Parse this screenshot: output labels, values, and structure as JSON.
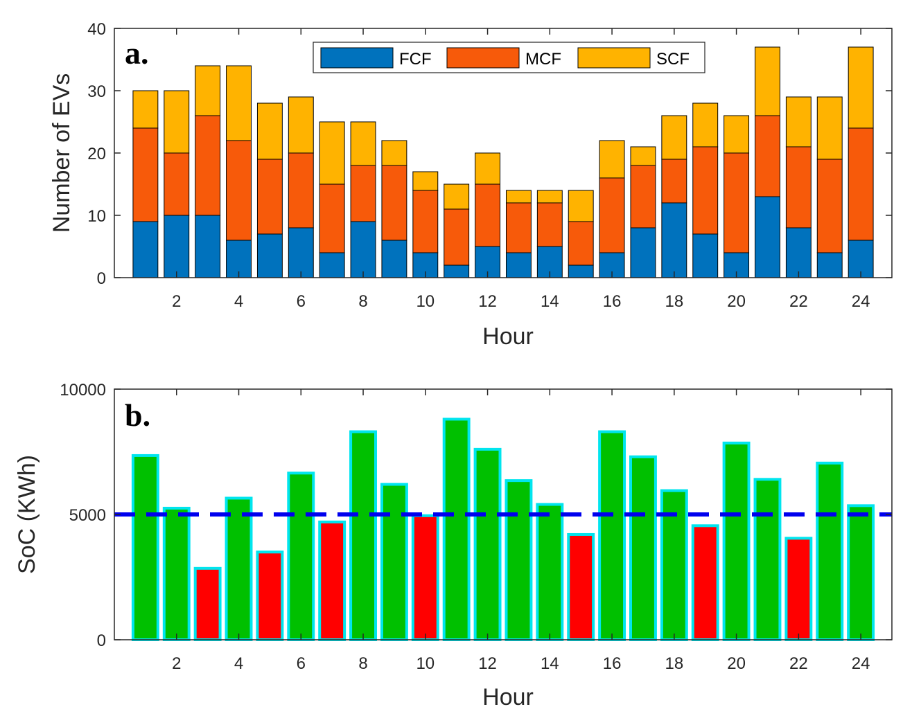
{
  "chart_data": [
    {
      "type": "bar",
      "stacked": true,
      "panel_label": "a.",
      "xlabel": "Hour",
      "ylabel": "Number of EVs",
      "ylim": [
        0,
        40
      ],
      "yticks": [
        0,
        10,
        20,
        30,
        40
      ],
      "xlim": [
        0,
        25
      ],
      "xticks": [
        2,
        4,
        6,
        8,
        10,
        12,
        14,
        16,
        18,
        20,
        22,
        24
      ],
      "grid": false,
      "legend": {
        "placement": "top-center",
        "orientation": "horizontal"
      },
      "x": [
        1,
        2,
        3,
        4,
        5,
        6,
        7,
        8,
        9,
        10,
        11,
        12,
        13,
        14,
        15,
        16,
        17,
        18,
        19,
        20,
        21,
        22,
        23,
        24
      ],
      "series": [
        {
          "name": "FCF",
          "color": "#0072BD",
          "values": [
            9,
            10,
            10,
            6,
            7,
            8,
            4,
            9,
            6,
            4,
            2,
            5,
            4,
            5,
            2,
            4,
            8,
            12,
            7,
            4,
            13,
            8,
            4,
            6
          ]
        },
        {
          "name": "MCF",
          "color": "#F75A0A",
          "values": [
            15,
            10,
            16,
            16,
            12,
            12,
            11,
            9,
            12,
            10,
            9,
            10,
            8,
            7,
            7,
            12,
            10,
            7,
            14,
            16,
            13,
            13,
            15,
            18
          ]
        },
        {
          "name": "SCF",
          "color": "#FFB300",
          "values": [
            6,
            10,
            8,
            12,
            9,
            9,
            10,
            7,
            4,
            3,
            4,
            5,
            2,
            2,
            5,
            6,
            3,
            7,
            7,
            6,
            11,
            8,
            10,
            13
          ]
        }
      ]
    },
    {
      "type": "bar",
      "panel_label": "b.",
      "xlabel": "Hour",
      "ylabel": "SoC (KWh)",
      "ylim": [
        0,
        10000
      ],
      "yticks": [
        0,
        5000,
        10000
      ],
      "xlim": [
        0,
        25
      ],
      "xticks": [
        2,
        4,
        6,
        8,
        10,
        12,
        14,
        16,
        18,
        20,
        22,
        24
      ],
      "grid": false,
      "threshold": {
        "value": 5000,
        "color": "#0000EE",
        "style": "dashed"
      },
      "colors": {
        "above": "#00C000",
        "below": "#FF0000",
        "edge": "#00E5EE"
      },
      "x": [
        1,
        2,
        3,
        4,
        5,
        6,
        7,
        8,
        9,
        10,
        11,
        12,
        13,
        14,
        15,
        16,
        17,
        18,
        19,
        20,
        21,
        22,
        23,
        24
      ],
      "values": [
        7350,
        5250,
        2850,
        5650,
        3500,
        6650,
        4700,
        8300,
        6200,
        4950,
        8800,
        7600,
        6350,
        5400,
        4200,
        8300,
        7300,
        5950,
        4550,
        7850,
        6400,
        4050,
        7050,
        5350
      ]
    }
  ]
}
